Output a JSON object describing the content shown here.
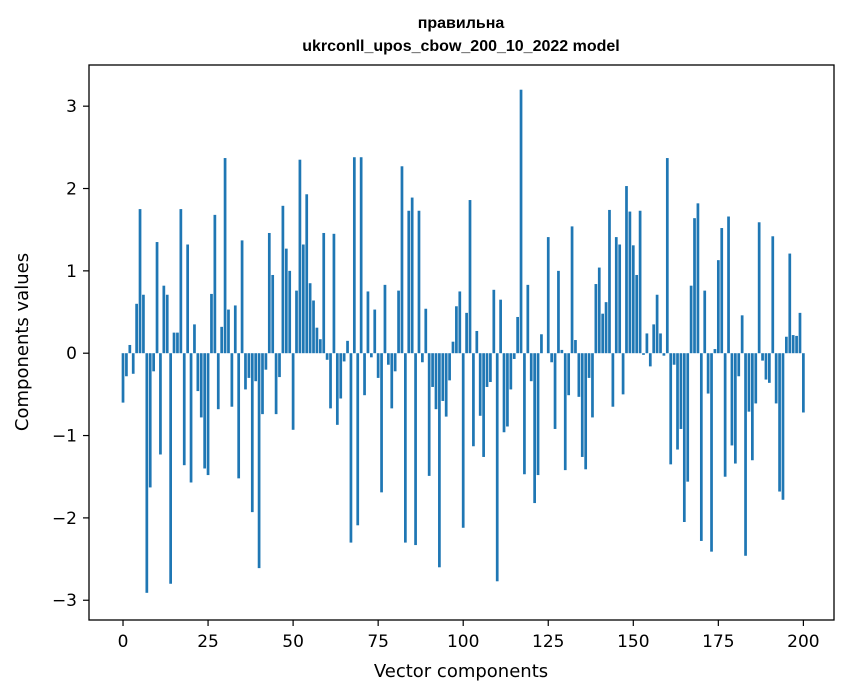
{
  "chart_data": {
    "type": "bar",
    "title_line1": "правильна",
    "title_line2": "ukrconll_upos_cbow_200_10_2022 model",
    "xlabel": "Vector components",
    "ylabel": "Components values",
    "xlim": [
      -10,
      209
    ],
    "ylim": [
      -3.24,
      3.5
    ],
    "xticks": [
      0,
      25,
      50,
      75,
      100,
      125,
      150,
      175,
      200
    ],
    "xtick_labels": [
      "0",
      "25",
      "50",
      "75",
      "100",
      "125",
      "150",
      "175",
      "200"
    ],
    "yticks": [
      -3,
      -2,
      -1,
      0,
      1,
      2,
      3
    ],
    "ytick_labels": [
      "−3",
      "−2",
      "−1",
      "0",
      "1",
      "2",
      "3"
    ],
    "bar_color": "#1f77b4",
    "grid": false,
    "legend": "none",
    "values": [
      -0.6,
      -0.28,
      0.1,
      -0.25,
      0.6,
      1.75,
      0.71,
      -2.91,
      -1.63,
      -0.22,
      1.35,
      -1.23,
      0.82,
      0.71,
      -2.8,
      0.25,
      0.25,
      1.75,
      -1.36,
      1.32,
      -1.57,
      0.35,
      -0.46,
      -0.78,
      -1.4,
      -1.48,
      0.72,
      1.68,
      -0.68,
      0.32,
      2.37,
      0.53,
      -0.65,
      0.58,
      -1.52,
      1.37,
      -0.44,
      -0.3,
      -1.93,
      -0.34,
      -2.61,
      -0.74,
      -0.2,
      1.46,
      0.95,
      -0.74,
      -0.29,
      1.79,
      1.27,
      1.0,
      -0.93,
      0.76,
      2.35,
      1.32,
      1.93,
      0.85,
      0.64,
      0.31,
      0.17,
      1.46,
      -0.08,
      -0.67,
      1.45,
      -0.87,
      -0.55,
      -0.1,
      0.15,
      -2.3,
      2.38,
      -2.09,
      2.38,
      -0.51,
      0.75,
      -0.05,
      0.53,
      -0.3,
      -1.69,
      0.83,
      -0.14,
      -0.67,
      -0.22,
      0.76,
      2.27,
      -2.3,
      1.73,
      1.89,
      -2.33,
      1.73,
      -0.11,
      0.54,
      -1.49,
      -0.41,
      -0.68,
      -2.6,
      -0.58,
      -0.77,
      -0.33,
      0.14,
      0.57,
      0.75,
      -2.12,
      0.49,
      1.86,
      -1.13,
      0.27,
      -0.76,
      -1.26,
      -0.41,
      -0.35,
      0.77,
      -2.77,
      0.65,
      -0.96,
      -0.89,
      -0.44,
      -0.07,
      0.44,
      3.2,
      -1.47,
      0.83,
      -0.34,
      -1.82,
      -1.48,
      0.23,
      0.0,
      1.41,
      -0.11,
      -0.92,
      1.0,
      0.04,
      -1.42,
      -0.51,
      1.54,
      0.16,
      -0.53,
      -1.26,
      -1.41,
      -0.3,
      -0.78,
      0.84,
      1.04,
      0.48,
      0.62,
      1.74,
      -0.65,
      1.41,
      1.32,
      -0.5,
      2.03,
      1.72,
      1.31,
      0.95,
      1.73,
      -0.02,
      0.24,
      -0.16,
      0.35,
      0.71,
      0.24,
      -0.03,
      2.37,
      -1.35,
      -0.14,
      -1.17,
      -0.92,
      -2.05,
      -1.56,
      0.82,
      1.64,
      1.82,
      -2.28,
      0.76,
      -0.49,
      -2.41,
      0.05,
      1.13,
      1.52,
      -1.5,
      1.66,
      -1.12,
      -1.34,
      -0.28,
      0.46,
      -2.46,
      -0.71,
      -1.3,
      -0.61,
      1.59,
      -0.09,
      -0.32,
      -0.36,
      1.42,
      -0.61,
      -1.68,
      -1.78,
      0.2,
      1.21,
      0.22,
      0.21,
      0.49,
      -0.72
    ]
  }
}
